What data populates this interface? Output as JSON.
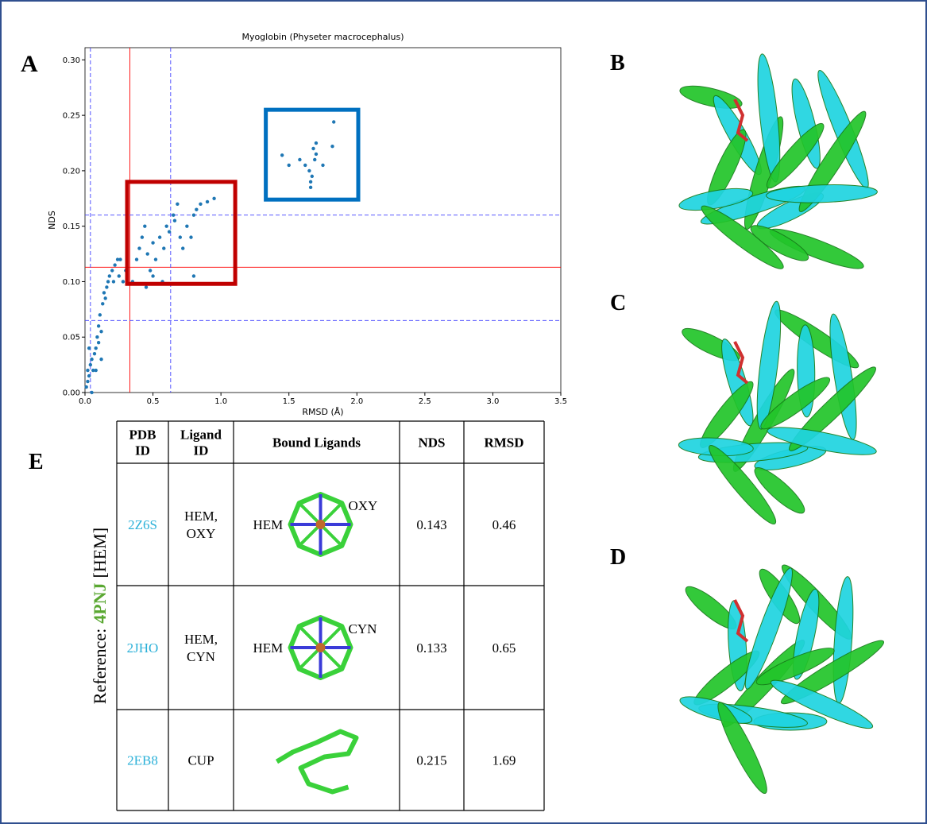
{
  "panels": {
    "a": "A",
    "b": "B",
    "c": "C",
    "d": "D",
    "e": "E"
  },
  "chart_data": {
    "type": "scatter",
    "title": "Myoglobin (Physeter macrocephalus)",
    "x_label": "RMSD (Å)",
    "y_label": "NDS",
    "color": "#1f77b4",
    "xlim": [
      0,
      3.5
    ],
    "ylim": [
      0,
      0.311
    ],
    "xticks": [
      {
        "value": 0,
        "label": "0.0"
      },
      0.5,
      {
        "value": 1,
        "label": "1.0"
      },
      1.5,
      {
        "value": 2,
        "label": "2.0"
      },
      2.5,
      {
        "value": 3,
        "label": "3.0"
      },
      3.5
    ],
    "yticks": [
      {
        "value": 0,
        "label": "0.00"
      },
      0.05,
      {
        "value": 0.1,
        "label": "0.10"
      },
      0.15,
      {
        "value": 0.2,
        "label": "0.20"
      },
      0.25,
      {
        "value": 0.3,
        "label": "0.30"
      }
    ],
    "points": {
      "x": [
        0.01,
        0.02,
        0.02,
        0.03,
        0.04,
        0.05,
        0.06,
        0.07,
        0.08,
        0.09,
        0.1,
        0.1,
        0.11,
        0.12,
        0.13,
        0.14,
        0.15,
        0.16,
        0.17,
        0.18,
        0.2,
        0.21,
        0.22,
        0.24,
        0.25,
        0.26,
        0.28,
        0.3,
        0.05,
        0.08,
        0.12,
        0.03,
        0.35,
        0.38,
        0.4,
        0.42,
        0.44,
        0.46,
        0.48,
        0.5,
        0.52,
        0.55,
        0.58,
        0.6,
        0.62,
        0.65,
        0.66,
        0.68,
        0.7,
        0.72,
        0.75,
        0.78,
        0.8,
        0.82,
        0.85,
        0.9,
        0.95,
        0.8,
        0.45,
        0.5,
        0.57,
        1.45,
        1.5,
        1.58,
        1.62,
        1.65,
        1.66,
        1.67,
        1.68,
        1.7,
        1.7,
        1.75,
        1.82,
        1.83,
        1.66,
        1.69
      ],
      "y": [
        0.005,
        0.01,
        0.02,
        0.015,
        0.025,
        0.03,
        0.02,
        0.035,
        0.04,
        0.05,
        0.045,
        0.06,
        0.07,
        0.055,
        0.08,
        0.09,
        0.085,
        0.095,
        0.1,
        0.105,
        0.11,
        0.1,
        0.115,
        0.12,
        0.105,
        0.12,
        0.1,
        0.11,
        0.0,
        0.02,
        0.03,
        0.04,
        0.1,
        0.12,
        0.13,
        0.14,
        0.15,
        0.125,
        0.11,
        0.135,
        0.12,
        0.14,
        0.13,
        0.15,
        0.145,
        0.16,
        0.155,
        0.17,
        0.14,
        0.13,
        0.15,
        0.14,
        0.16,
        0.165,
        0.17,
        0.172,
        0.175,
        0.105,
        0.095,
        0.105,
        0.1,
        0.214,
        0.205,
        0.21,
        0.205,
        0.2,
        0.19,
        0.195,
        0.22,
        0.215,
        0.225,
        0.205,
        0.222,
        0.244,
        0.185,
        0.21
      ]
    },
    "reference_lines": [
      {
        "axis": "x",
        "value": 0.33,
        "color": "#ff0000",
        "dashed": false
      },
      {
        "axis": "y",
        "value": 0.113,
        "color": "#ff0000",
        "dashed": false
      },
      {
        "axis": "x",
        "value": 0.04,
        "color": "#4040ff",
        "dashed": true
      },
      {
        "axis": "x",
        "value": 0.63,
        "color": "#4040ff",
        "dashed": true
      },
      {
        "axis": "y",
        "value": 0.065,
        "color": "#4040ff",
        "dashed": true
      },
      {
        "axis": "y",
        "value": 0.16,
        "color": "#4040ff",
        "dashed": true
      }
    ],
    "highlight_boxes": [
      {
        "x": [
          0.31,
          1.105
        ],
        "y": [
          0.098,
          0.19
        ],
        "color": "#c00000"
      },
      {
        "x": [
          1.33,
          2.01
        ],
        "y": [
          0.174,
          0.255
        ],
        "color": "#0070c0"
      }
    ]
  },
  "table": {
    "reference": {
      "prefix": "Reference:",
      "pdb": "4PNJ",
      "ligand": "[HEM]"
    },
    "headers": [
      [
        "PDB",
        "ID"
      ],
      [
        "Ligand",
        "ID"
      ],
      [
        "Bound Ligands"
      ],
      [
        "NDS"
      ],
      [
        "RMSD"
      ]
    ],
    "rows": [
      {
        "pdb_id": "2Z6S",
        "ligand_id": [
          "HEM,",
          "OXY"
        ],
        "ligand_labels": [
          "HEM",
          "OXY"
        ],
        "nds": 0.143,
        "rmsd": 0.46
      },
      {
        "pdb_id": "2JHO",
        "ligand_id": [
          "HEM,",
          "CYN"
        ],
        "ligand_labels": [
          "HEM",
          "CYN"
        ],
        "nds": 0.133,
        "rmsd": 0.65
      },
      {
        "pdb_id": "2EB8",
        "ligand_id": [
          "CUP"
        ],
        "ligand_labels": [],
        "nds": 0.215,
        "rmsd": 1.69
      }
    ]
  }
}
